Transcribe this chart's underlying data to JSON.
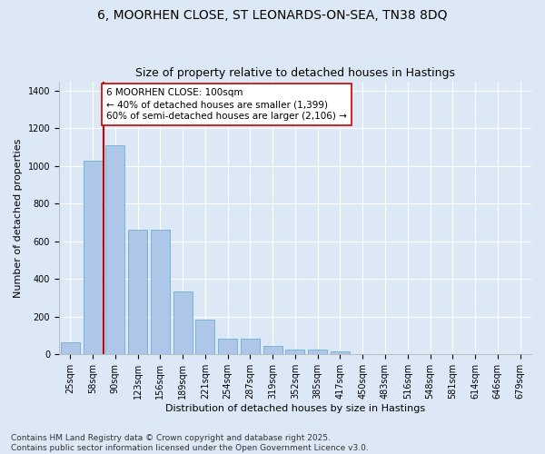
{
  "title_line1": "6, MOORHEN CLOSE, ST LEONARDS-ON-SEA, TN38 8DQ",
  "title_line2": "Size of property relative to detached houses in Hastings",
  "xlabel": "Distribution of detached houses by size in Hastings",
  "ylabel": "Number of detached properties",
  "categories": [
    "25sqm",
    "58sqm",
    "90sqm",
    "123sqm",
    "156sqm",
    "189sqm",
    "221sqm",
    "254sqm",
    "287sqm",
    "319sqm",
    "352sqm",
    "385sqm",
    "417sqm",
    "450sqm",
    "483sqm",
    "516sqm",
    "548sqm",
    "581sqm",
    "614sqm",
    "646sqm",
    "679sqm"
  ],
  "values": [
    62,
    1030,
    1110,
    660,
    660,
    335,
    185,
    85,
    85,
    45,
    27,
    25,
    15,
    0,
    0,
    0,
    0,
    0,
    0,
    0,
    0
  ],
  "bar_color": "#aec6e8",
  "bar_edge_color": "#6baed6",
  "vline_color": "#cc0000",
  "vline_x_index": 2,
  "annotation_text": "6 MOORHEN CLOSE: 100sqm\n← 40% of detached houses are smaller (1,399)\n60% of semi-detached houses are larger (2,106) →",
  "annotation_box_color": "#ffffff",
  "annotation_box_edge": "#cc0000",
  "ylim": [
    0,
    1450
  ],
  "footnote": "Contains HM Land Registry data © Crown copyright and database right 2025.\nContains public sector information licensed under the Open Government Licence v3.0.",
  "background_color": "#dce8f5",
  "plot_background": "#dce8f5",
  "grid_color": "#ffffff",
  "title_fontsize": 10,
  "subtitle_fontsize": 9,
  "axis_label_fontsize": 8,
  "tick_fontsize": 7,
  "annotation_fontsize": 7.5,
  "footnote_fontsize": 6.5
}
